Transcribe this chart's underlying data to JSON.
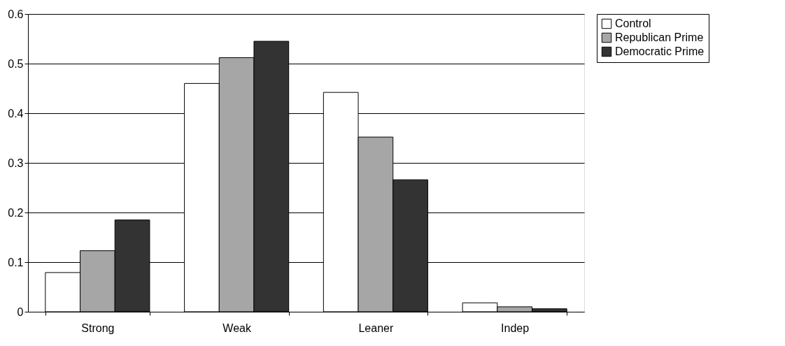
{
  "chart_data": {
    "type": "bar",
    "categories": [
      "Strong",
      "Weak",
      "Leaner",
      "Indep"
    ],
    "series": [
      {
        "name": "Control",
        "color": "#ffffff",
        "values": [
          0.079,
          0.46,
          0.442,
          0.018
        ]
      },
      {
        "name": "Republican Prime",
        "color": "#a6a6a6",
        "values": [
          0.123,
          0.512,
          0.352,
          0.01
        ]
      },
      {
        "name": "Democratic Prime",
        "color": "#333333",
        "values": [
          0.185,
          0.545,
          0.266,
          0.006
        ]
      }
    ],
    "ylim": [
      0,
      0.6
    ],
    "yticks": [
      0,
      0.1,
      0.2,
      0.3,
      0.4,
      0.5,
      0.6
    ],
    "grid": "y",
    "legend": "right"
  }
}
